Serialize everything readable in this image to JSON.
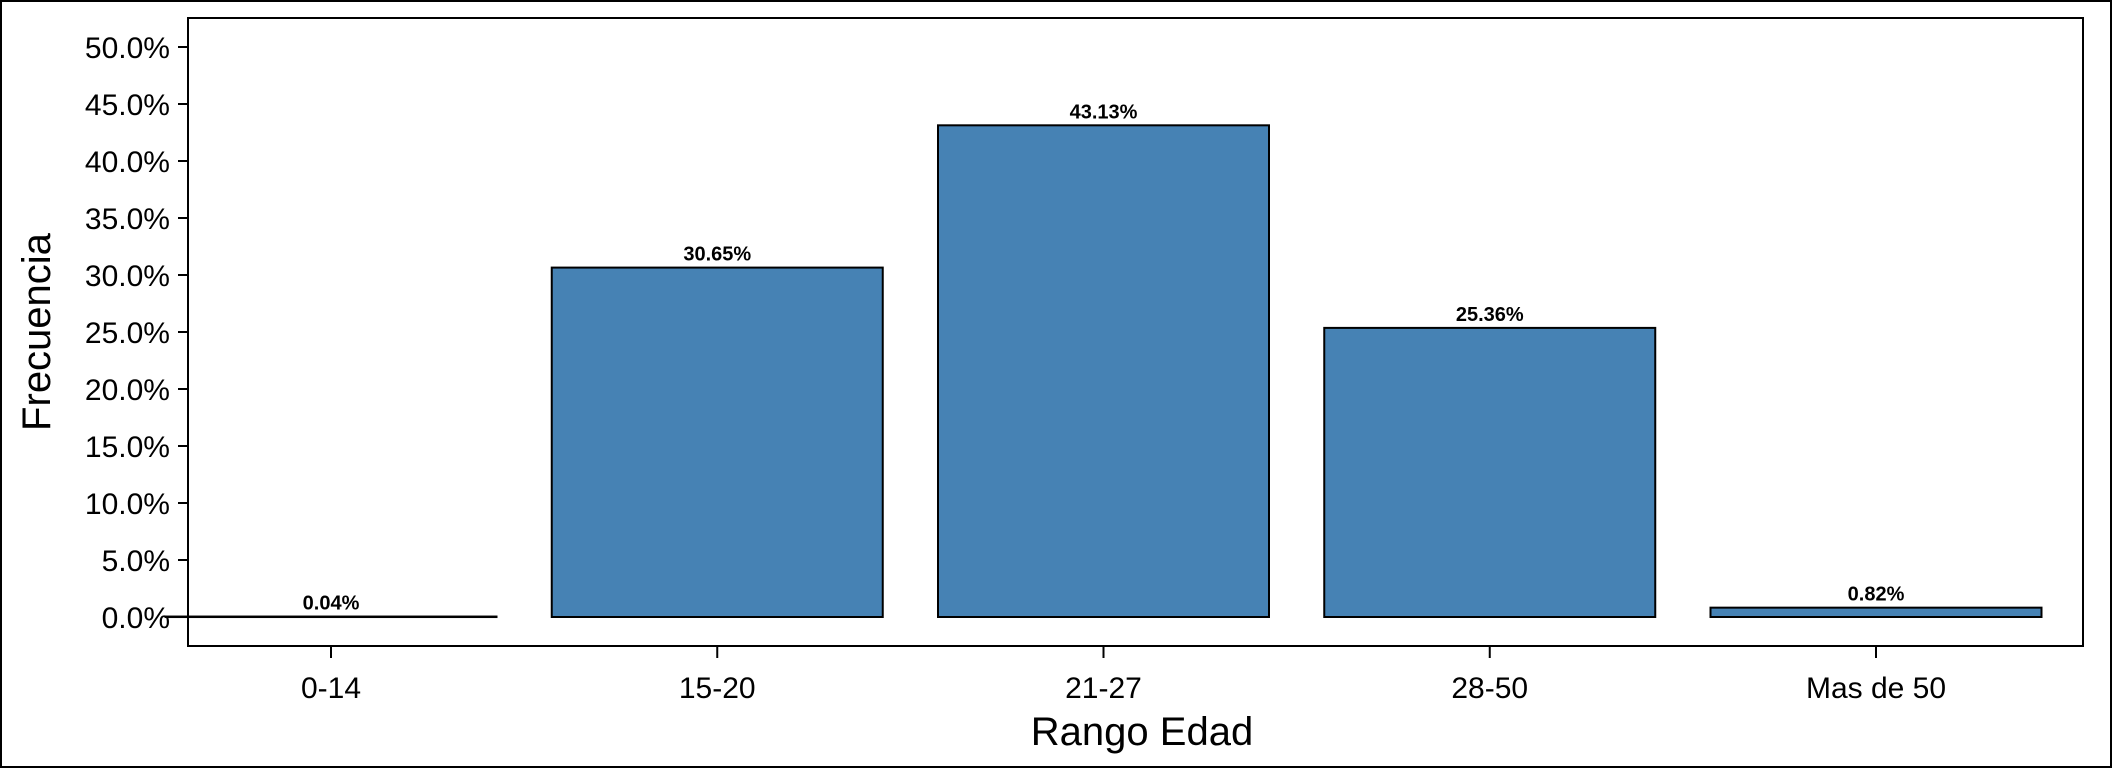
{
  "chart_data": {
    "type": "bar",
    "xlabel": "Rango Edad",
    "ylabel": "Frecuencia",
    "categories": [
      "0-14",
      "15-20",
      "21-27",
      "28-50",
      "Mas de 50"
    ],
    "values": [
      0.04,
      30.65,
      43.13,
      25.36,
      0.82
    ],
    "data_labels": [
      "0.04%",
      "30.65%",
      "43.13%",
      "25.36%",
      "0.82%"
    ],
    "ylim": [
      0,
      50
    ],
    "yticks": [
      0,
      5,
      10,
      15,
      20,
      25,
      30,
      35,
      40,
      45,
      50
    ],
    "ytick_labels": [
      "0.0%",
      "5.0%",
      "10.0%",
      "15.0%",
      "20.0%",
      "25.0%",
      "30.0%",
      "35.0%",
      "40.0%",
      "45.0%",
      "50.0%"
    ],
    "grid": false,
    "colors": {
      "bar": "#4682B4",
      "edge": "#000000"
    }
  }
}
